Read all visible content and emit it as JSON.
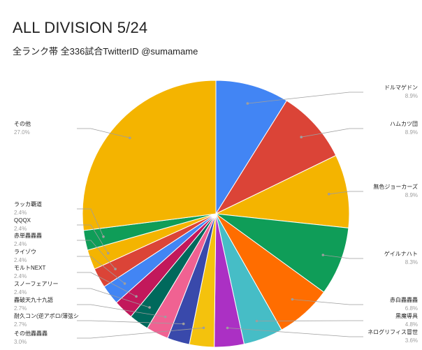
{
  "chart_data": {
    "type": "pie",
    "title": "ALL DIVISION 5/24",
    "subtitle": "全ランク帯 全336試合TwitterID @sumamame",
    "start_angle": "top",
    "direction": "clockwise",
    "slices": [
      {
        "name": "ドルマゲドン",
        "value": 8.9,
        "label": "8.9%",
        "color": "#4285f4",
        "side": "right"
      },
      {
        "name": "ハムカツ団",
        "value": 8.9,
        "label": "8.9%",
        "color": "#db4437",
        "side": "right"
      },
      {
        "name": "無色ジョーカーズ",
        "value": 8.9,
        "label": "8.9%",
        "color": "#f4b400",
        "side": "right"
      },
      {
        "name": "ゲイルナハト",
        "value": 8.3,
        "label": "8.3%",
        "color": "#0f9d58",
        "side": "right"
      },
      {
        "name": "赤白轟轟轟",
        "value": 6.8,
        "label": "6.8%",
        "color": "#ff6d00",
        "side": "right"
      },
      {
        "name": "黒魔導具",
        "value": 4.8,
        "label": "4.8%",
        "color": "#46bdc6",
        "side": "right"
      },
      {
        "name": "ネログリフィス冒世",
        "value": 3.6,
        "label": "3.6%",
        "color": "#ab30c4",
        "side": "right"
      },
      {
        "name": "その他轟轟轟",
        "value": 3.0,
        "label": "3.0%",
        "color": "#f4c20d",
        "side": "left"
      },
      {
        "name": "耐久コン(逆アポロ/薄弦シ",
        "value": 2.7,
        "label": "2.7%",
        "color": "#3949ab",
        "side": "left"
      },
      {
        "name": "轟破天九十九語",
        "value": 2.7,
        "label": "2.7%",
        "color": "#f06292",
        "side": "left"
      },
      {
        "name": "スノーフェアリー",
        "value": 2.4,
        "label": "2.4%",
        "color": "#00695c",
        "side": "left"
      },
      {
        "name": "モルトNEXT",
        "value": 2.4,
        "label": "2.4%",
        "color": "#c2185b",
        "side": "left"
      },
      {
        "name": "ライゾウ",
        "value": 2.4,
        "label": "2.4%",
        "color": "#4285f4",
        "side": "left"
      },
      {
        "name": "赤単轟轟轟",
        "value": 2.4,
        "label": "2.4%",
        "color": "#db4437",
        "side": "left"
      },
      {
        "name": "QQQX",
        "value": 2.4,
        "label": "2.4%",
        "color": "#f4b400",
        "side": "left"
      },
      {
        "name": "ラッカ覇道",
        "value": 2.4,
        "label": "2.4%",
        "color": "#0f9d58",
        "side": "left"
      },
      {
        "name": "その他",
        "value": 27.0,
        "label": "27.0%",
        "color": "#f4b400",
        "side": "left"
      }
    ]
  }
}
